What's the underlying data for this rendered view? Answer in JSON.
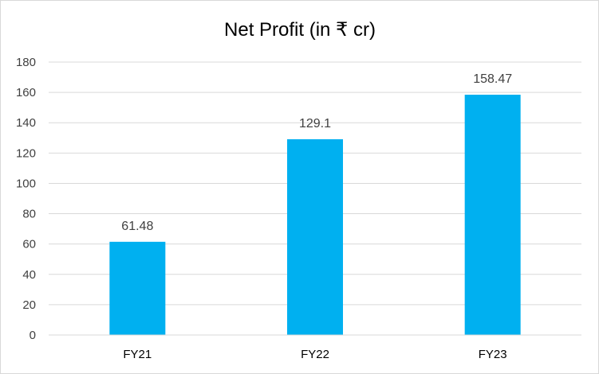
{
  "chart_data": {
    "type": "bar",
    "title": "Net Profit (in ₹ cr)",
    "xlabel": "",
    "ylabel": "",
    "categories": [
      "FY21",
      "FY22",
      "FY23"
    ],
    "values": [
      61.48,
      129.1,
      158.47
    ],
    "data_labels": [
      "61.48",
      "129.1",
      "158.47"
    ],
    "ylim": [
      0,
      180
    ],
    "yticks": [
      0,
      20,
      40,
      60,
      80,
      100,
      120,
      140,
      160,
      180
    ],
    "grid": true,
    "legend": "none",
    "bar_color": "#00B0F0",
    "gridline_color": "#d9d9d9"
  }
}
